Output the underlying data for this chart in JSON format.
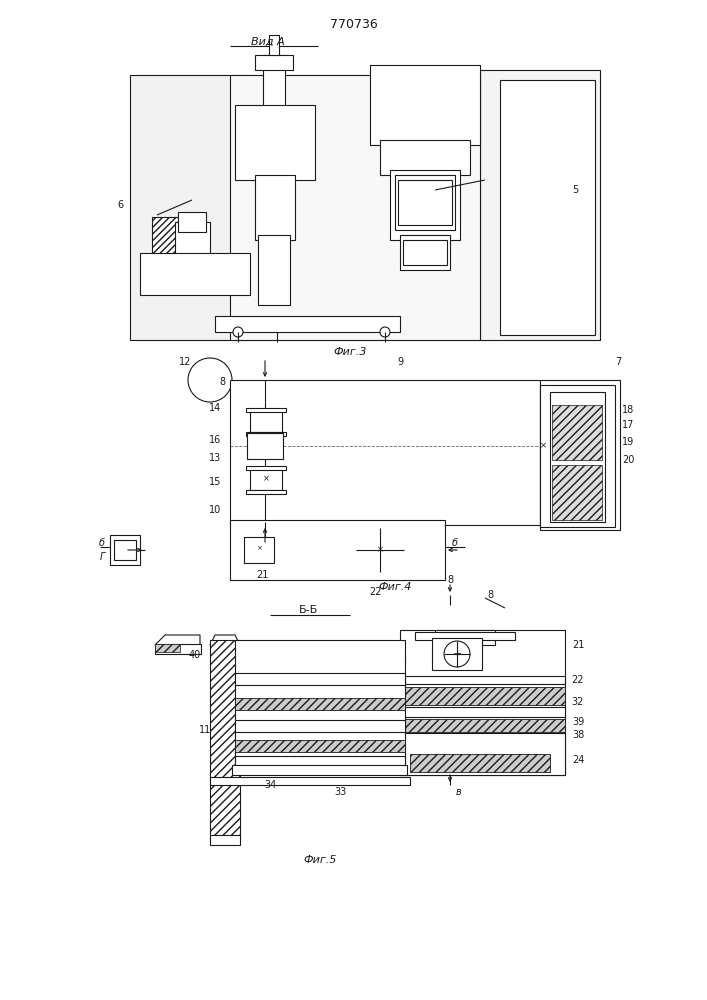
{
  "title": "770736",
  "background": "#ffffff",
  "lc": "#1a1a1a",
  "lw": 0.8,
  "fig3_label": "Фиг.3",
  "fig4_label": "Фиг.4",
  "fig5_label": "Фиг.5",
  "vid_a": "Вид А",
  "bb_label": "Б-Б"
}
